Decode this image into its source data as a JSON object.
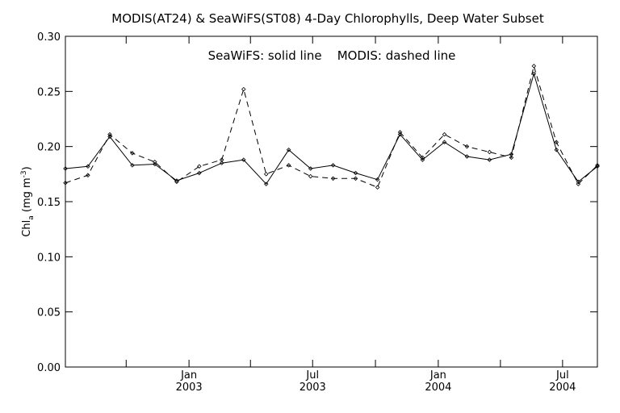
{
  "chart_data": {
    "type": "line",
    "title": "MODIS(AT24) & SeaWiFS(ST08) 4-Day Chlorophylls, Deep Water Subset",
    "legend_text": "SeaWiFS: solid line    MODIS: dashed line",
    "legend_placement": "top-center",
    "ylabel_main": "Chl",
    "ylabel_sub": "a",
    "ylabel_units": " (mg m",
    "ylabel_exp": "-3",
    "ylabel_close": ")",
    "ylim": [
      0.0,
      0.3
    ],
    "yticks": [
      0.0,
      0.05,
      0.1,
      0.15,
      0.2,
      0.25,
      0.3
    ],
    "ytick_labels": [
      "0.00",
      "0.05",
      "0.10",
      "0.15",
      "0.20",
      "0.25",
      "0.30"
    ],
    "xlim": [
      "2002-07-04",
      "2004-08-21"
    ],
    "xtick_dates": [
      "2002-10-01",
      "2003-01-01",
      "2003-04-01",
      "2003-07-01",
      "2003-10-01",
      "2004-01-01",
      "2004-04-01",
      "2004-07-01"
    ],
    "xtick_labels": [
      {
        "date": "2003-01-01",
        "month": "Jan",
        "year": "2003"
      },
      {
        "date": "2003-07-01",
        "month": "Jul",
        "year": "2003"
      },
      {
        "date": "2004-01-01",
        "month": "Jan",
        "year": "2004"
      },
      {
        "date": "2004-07-01",
        "month": "Jul",
        "year": "2004"
      }
    ],
    "grid": false,
    "series": [
      {
        "style": "solid",
        "x": [
          "2002-07-04",
          "2002-08-06",
          "2002-09-07",
          "2002-10-10",
          "2002-11-12",
          "2002-12-14",
          "2003-01-16",
          "2003-02-18",
          "2003-03-22",
          "2003-04-24",
          "2003-05-27",
          "2003-06-28",
          "2003-07-31",
          "2003-09-02",
          "2003-10-04",
          "2003-11-06",
          "2003-12-09",
          "2004-01-10",
          "2004-02-12",
          "2004-03-16",
          "2004-04-17",
          "2004-05-20",
          "2004-06-22",
          "2004-07-24",
          "2004-08-21"
        ],
        "values": [
          0.18,
          0.182,
          0.209,
          0.183,
          0.184,
          0.169,
          0.176,
          0.185,
          0.188,
          0.166,
          0.197,
          0.18,
          0.183,
          0.176,
          0.17,
          0.211,
          0.188,
          0.204,
          0.191,
          0.188,
          0.193,
          0.266,
          0.197,
          0.168,
          0.182
        ]
      },
      {
        "style": "dashed",
        "x": [
          "2002-07-04",
          "2002-08-06",
          "2002-09-07",
          "2002-10-10",
          "2002-11-12",
          "2002-12-14",
          "2003-01-16",
          "2003-02-18",
          "2003-03-22",
          "2003-04-24",
          "2003-05-27",
          "2003-06-28",
          "2003-07-31",
          "2003-09-02",
          "2003-10-04",
          "2003-11-06",
          "2003-12-09",
          "2004-01-10",
          "2004-02-12",
          "2004-03-16",
          "2004-04-17",
          "2004-05-20",
          "2004-06-22",
          "2004-07-24",
          "2004-08-21"
        ],
        "values": [
          0.167,
          0.174,
          0.211,
          0.194,
          0.186,
          0.168,
          0.182,
          0.188,
          0.252,
          0.175,
          0.183,
          0.173,
          0.171,
          0.171,
          0.163,
          0.213,
          0.19,
          0.211,
          0.2,
          0.195,
          0.19,
          0.273,
          0.204,
          0.166,
          0.183
        ]
      }
    ]
  }
}
